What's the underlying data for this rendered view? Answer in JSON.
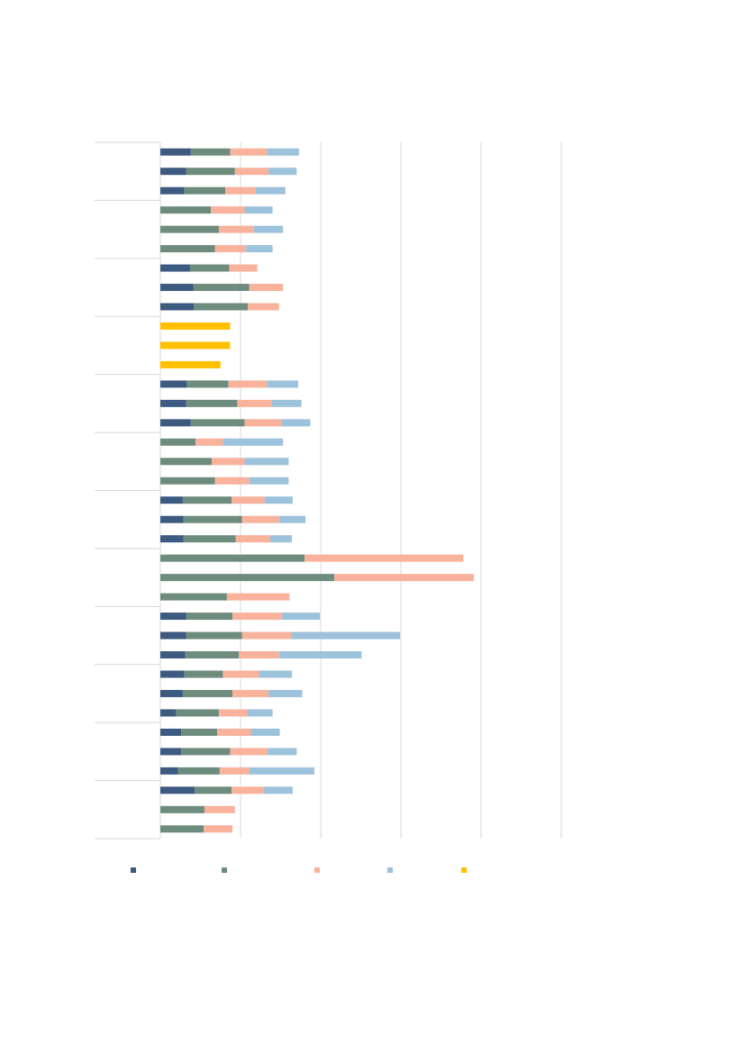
{
  "chart_data": {
    "type": "bar",
    "orientation": "horizontal",
    "stacked": true,
    "title": "",
    "xlabel": "",
    "ylabel": "",
    "xlim": [
      0,
      500
    ],
    "gridlines": "vertical",
    "legend_position": "bottom",
    "groups": 12,
    "rows_per_group": 3,
    "series": [
      {
        "name": "",
        "color": "#3d5a80",
        "values": [
          38,
          32,
          30,
          0,
          0,
          0,
          37,
          41,
          42,
          0,
          0,
          0,
          33,
          32,
          38,
          0,
          0,
          0,
          28,
          29,
          29,
          0,
          0,
          0,
          32,
          32,
          31,
          30,
          28,
          20,
          26,
          26,
          22,
          43,
          0,
          0
        ]
      },
      {
        "name": "",
        "color": "#6e8c7e",
        "values": [
          49,
          61,
          51,
          63,
          73,
          68,
          49,
          70,
          67,
          0,
          0,
          0,
          52,
          64,
          67,
          44,
          64,
          68,
          61,
          73,
          65,
          180,
          217,
          83,
          58,
          70,
          67,
          48,
          62,
          53,
          45,
          61,
          52,
          46,
          55,
          54
        ]
      },
      {
        "name": "",
        "color": "#f9b29c",
        "values": [
          46,
          42,
          38,
          42,
          43,
          39,
          35,
          42,
          39,
          0,
          0,
          0,
          48,
          43,
          46,
          34,
          41,
          43,
          41,
          46,
          43,
          198,
          174,
          78,
          62,
          61,
          50,
          45,
          45,
          36,
          42,
          47,
          37,
          40,
          38,
          36
        ]
      },
      {
        "name": "",
        "color": "#9cc2dc",
        "values": [
          40,
          35,
          37,
          35,
          37,
          33,
          0,
          0,
          0,
          0,
          0,
          0,
          39,
          37,
          36,
          75,
          55,
          49,
          35,
          33,
          27,
          0,
          0,
          0,
          47,
          136,
          103,
          41,
          42,
          31,
          36,
          36,
          81,
          36,
          0,
          0
        ]
      },
      {
        "name": "",
        "color": "#ffc000",
        "values": [
          0,
          0,
          0,
          0,
          0,
          0,
          0,
          0,
          0,
          87,
          87,
          75,
          0,
          0,
          0,
          0,
          0,
          0,
          0,
          0,
          0,
          0,
          0,
          0,
          0,
          0,
          0,
          0,
          0,
          0,
          0,
          0,
          0,
          0,
          0,
          0
        ]
      }
    ]
  }
}
